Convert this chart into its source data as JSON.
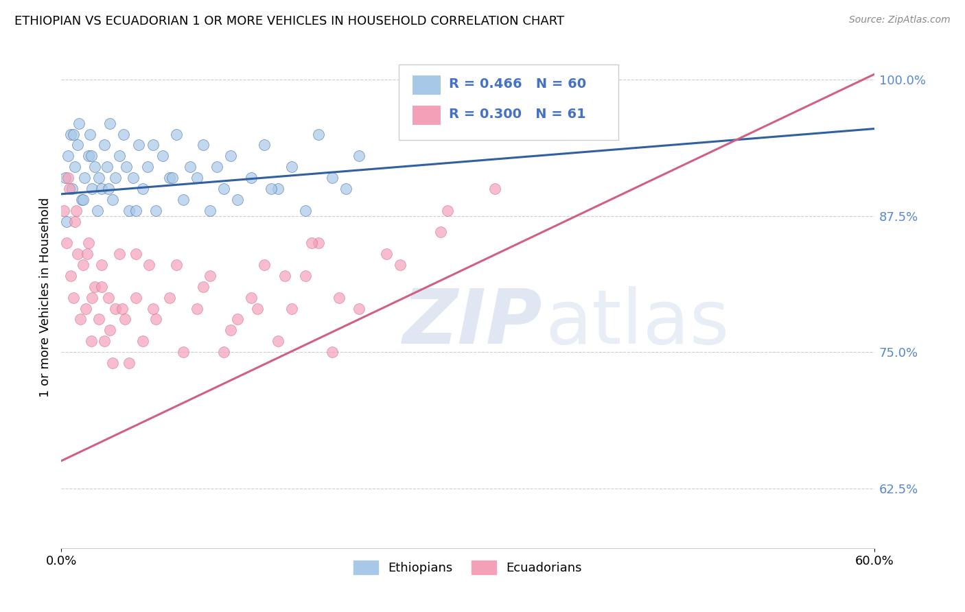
{
  "title": "ETHIOPIAN VS ECUADORIAN 1 OR MORE VEHICLES IN HOUSEHOLD CORRELATION CHART",
  "source": "Source: ZipAtlas.com",
  "ylabel": "1 or more Vehicles in Household",
  "x_min": 0.0,
  "x_max": 60.0,
  "y_min": 57.0,
  "y_max": 103.0,
  "y_ticks_right": [
    62.5,
    75.0,
    87.5,
    100.0
  ],
  "legend_r_ethiopian": "R = 0.466",
  "legend_n_ethiopian": "N = 60",
  "legend_r_ecuadorian": "R = 0.300",
  "legend_n_ecuadorian": "N = 61",
  "legend_label_ethiopian": "Ethiopians",
  "legend_label_ecuadorian": "Ecuadorians",
  "color_ethiopian": "#a8c8e8",
  "color_ecuadorian": "#f4a0b8",
  "color_trendline_ethiopian": "#3060a0",
  "color_trendline_ecuadorian": "#d06080",
  "eth_trend_x0": 0.0,
  "eth_trend_y0": 89.5,
  "eth_trend_x1": 60.0,
  "eth_trend_y1": 95.5,
  "ecu_trend_x0": 0.0,
  "ecu_trend_y0": 65.0,
  "ecu_trend_x1": 60.0,
  "ecu_trend_y1": 100.5,
  "ethiopian_x": [
    0.3,
    0.5,
    0.7,
    0.8,
    1.0,
    1.2,
    1.3,
    1.5,
    1.7,
    2.0,
    2.1,
    2.3,
    2.5,
    2.7,
    3.0,
    3.2,
    3.4,
    3.6,
    3.8,
    4.0,
    4.3,
    4.6,
    5.0,
    5.3,
    5.7,
    6.0,
    6.4,
    7.0,
    7.5,
    8.0,
    8.5,
    9.0,
    9.5,
    10.0,
    10.5,
    11.0,
    11.5,
    12.0,
    12.5,
    13.0,
    14.0,
    15.0,
    16.0,
    17.0,
    18.0,
    19.0,
    20.0,
    21.0,
    22.0,
    0.4,
    0.9,
    1.6,
    2.2,
    2.8,
    3.5,
    4.8,
    5.5,
    6.8,
    8.2,
    15.5
  ],
  "ethiopian_y": [
    91,
    93,
    95,
    90,
    92,
    94,
    96,
    89,
    91,
    93,
    95,
    90,
    92,
    88,
    90,
    94,
    92,
    96,
    89,
    91,
    93,
    95,
    88,
    91,
    94,
    90,
    92,
    88,
    93,
    91,
    95,
    89,
    92,
    91,
    94,
    88,
    92,
    90,
    93,
    89,
    91,
    94,
    90,
    92,
    88,
    95,
    91,
    90,
    93,
    87,
    95,
    89,
    93,
    91,
    90,
    92,
    88,
    94,
    91,
    90
  ],
  "ecuadorian_x": [
    0.2,
    0.4,
    0.6,
    0.7,
    0.9,
    1.0,
    1.2,
    1.4,
    1.6,
    1.8,
    2.0,
    2.2,
    2.5,
    2.8,
    3.0,
    3.2,
    3.5,
    3.8,
    4.0,
    4.3,
    4.7,
    5.0,
    5.5,
    6.0,
    6.5,
    7.0,
    8.0,
    9.0,
    10.0,
    11.0,
    12.0,
    13.0,
    14.0,
    15.0,
    16.0,
    17.0,
    18.0,
    19.0,
    20.0,
    22.0,
    25.0,
    28.0,
    32.0,
    0.5,
    1.1,
    1.9,
    2.3,
    3.0,
    3.6,
    4.5,
    5.5,
    6.8,
    8.5,
    10.5,
    12.5,
    14.5,
    16.5,
    18.5,
    20.5,
    24.0,
    28.5
  ],
  "ecuadorian_y": [
    88,
    85,
    90,
    82,
    80,
    87,
    84,
    78,
    83,
    79,
    85,
    76,
    81,
    78,
    83,
    76,
    80,
    74,
    79,
    84,
    78,
    74,
    80,
    76,
    83,
    78,
    80,
    75,
    79,
    82,
    75,
    78,
    80,
    83,
    76,
    79,
    82,
    85,
    75,
    79,
    83,
    86,
    90,
    91,
    88,
    84,
    80,
    81,
    77,
    79,
    84,
    79,
    83,
    81,
    77,
    79,
    82,
    85,
    80,
    84,
    88
  ]
}
